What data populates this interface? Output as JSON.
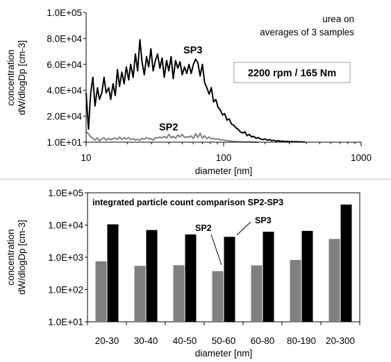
{
  "chart_data": [
    {
      "type": "line",
      "x_scale": "log",
      "xlim": [
        10,
        1000
      ],
      "ylim": [
        10,
        100000
      ],
      "x_ticks": [
        "10",
        "100",
        "1000"
      ],
      "y_ticks": [
        "1.0E+01",
        "2.0E+04",
        "4.0E+04",
        "6.0E+04",
        "8.0E+04",
        "1.0E+05"
      ],
      "xlabel": "diameter [nm]",
      "ylabel_line1": "concentration",
      "ylabel_line2": "dW/dlogDp [cm-3]",
      "annotation_line1": "urea on",
      "annotation_line2": "averages of 3 samples",
      "boxed_label": "2200 rpm / 165 Nm",
      "grid": false,
      "series": [
        {
          "name": "SP3",
          "color": "#000000",
          "x": [
            10,
            10.4,
            10.8,
            11.2,
            11.6,
            12.1,
            12.5,
            13.0,
            13.5,
            14.0,
            14.6,
            15.1,
            15.7,
            16.3,
            16.9,
            17.5,
            18.2,
            18.9,
            19.6,
            20.4,
            21.1,
            22.0,
            22.8,
            23.7,
            24.6,
            25.5,
            26.5,
            27.5,
            28.5,
            29.6,
            30.7,
            31.9,
            33.1,
            34.4,
            35.7,
            37.0,
            38.5,
            39.9,
            41.5,
            43.0,
            44.7,
            46.4,
            48.2,
            50.0,
            51.9,
            53.9,
            56.0,
            58.1,
            60.3,
            62.6,
            65.0,
            67.5,
            70.1,
            72.7,
            75.5,
            78.4,
            81.4,
            84.5,
            87.7,
            91.0,
            94.5,
            98.1,
            101.9,
            105.8,
            109.8,
            114.0,
            118.3,
            122.8,
            127.5,
            132.4,
            137.4,
            142.7,
            148.1,
            153.8,
            159.6,
            165.7,
            172.1,
            178.6,
            185.4,
            192.5,
            199.9,
            207.5,
            215.4,
            223.6,
            232.2,
            241.0,
            250.2,
            259.8,
            269.7,
            280.0,
            290.6,
            301.7,
            313.3,
            325.2,
            337.6,
            350.5,
            363.9,
            377.8,
            392.2
          ],
          "y": [
            38000,
            10000,
            38000,
            50000,
            28000,
            42000,
            33000,
            38000,
            50000,
            38000,
            42000,
            33000,
            45000,
            36000,
            56000,
            43000,
            54000,
            45000,
            58000,
            48000,
            60000,
            50000,
            68000,
            55000,
            79000,
            62000,
            52000,
            66000,
            58000,
            72000,
            55000,
            63000,
            68000,
            57000,
            65000,
            50000,
            63000,
            55000,
            66000,
            49000,
            63000,
            57000,
            62000,
            52000,
            58000,
            53000,
            60000,
            53000,
            60000,
            64000,
            61000,
            51000,
            60000,
            46000,
            42000,
            37000,
            42000,
            31000,
            33000,
            27000,
            25000,
            21000,
            22000,
            17000,
            18000,
            14000,
            13000,
            11000,
            10000,
            8000,
            7000,
            8000,
            5000,
            6000,
            4000,
            4500,
            3000,
            3500,
            2500,
            2000,
            2500,
            1500,
            2000,
            1200,
            1500,
            800,
            1200,
            600,
            900,
            500,
            700,
            400,
            500,
            300,
            400,
            200,
            300,
            100,
            150
          ]
        },
        {
          "name": "SP2",
          "color": "#808080",
          "x": [
            10,
            10.4,
            10.8,
            11.2,
            11.6,
            12.1,
            12.5,
            13.0,
            13.5,
            14.0,
            14.6,
            15.1,
            15.7,
            16.3,
            16.9,
            17.5,
            18.2,
            18.9,
            19.6,
            20.4,
            21.1,
            22.0,
            22.8,
            23.7,
            24.6,
            25.5,
            26.5,
            27.5,
            28.5,
            29.6,
            30.7,
            31.9,
            33.1,
            34.4,
            35.7,
            37.0,
            38.5,
            39.9,
            41.5,
            43.0,
            44.7,
            46.4,
            48.2,
            50.0,
            51.9,
            53.9,
            56.0,
            58.1,
            60.3,
            62.6,
            65.0,
            67.5,
            70.1,
            72.7,
            75.5,
            78.4,
            81.4,
            84.5,
            87.7,
            91.0,
            94.5,
            98.1,
            101.9,
            105.8,
            109.8,
            114.0,
            118.3,
            122.8,
            127.5,
            132.4,
            137.4,
            142.7,
            148.1,
            153.8,
            159.6,
            165.7,
            172.1,
            178.6
          ],
          "y": [
            8000,
            6500,
            4000,
            3000,
            1500,
            3500,
            1000,
            2500,
            3500,
            1500,
            3000,
            1800,
            2800,
            3200,
            2000,
            4000,
            2200,
            3500,
            2400,
            3600,
            2000,
            2800,
            1600,
            2400,
            1300,
            3000,
            2200,
            3600,
            2500,
            2800,
            1500,
            3600,
            3200,
            4000,
            3200,
            4500,
            3000,
            6000,
            3400,
            4500,
            3000,
            5500,
            4000,
            6000,
            3600,
            4200,
            3800,
            4800,
            2800,
            6500,
            3500,
            7000,
            3000,
            5000,
            2600,
            4000,
            2500,
            3000,
            2200,
            2500,
            1800,
            2000,
            1500,
            1200,
            1000,
            800,
            600,
            500,
            400,
            300,
            250,
            200,
            150,
            100,
            100,
            50,
            20,
            10
          ]
        }
      ]
    },
    {
      "type": "bar",
      "y_scale": "log",
      "ylim": [
        10,
        100000
      ],
      "y_ticks": [
        "1.0E+01",
        "1.0E+02",
        "1.0E+03",
        "1.0E+04",
        "1.0E+05"
      ],
      "categories": [
        "20-30",
        "30-40",
        "40-50",
        "50-60",
        "60-80",
        "80-190",
        "20-300"
      ],
      "title": "integrated particle count comparison  SP2-SP3",
      "xlabel": "diameter [nm]",
      "ylabel_line1": "concentration",
      "ylabel_line2": "dW/dlogDp [cm-3]",
      "grid": false,
      "series": [
        {
          "name": "SP2",
          "color": "#808080",
          "values": [
            750,
            540,
            570,
            370,
            560,
            830,
            3700
          ]
        },
        {
          "name": "SP3",
          "color": "#000000",
          "values": [
            10500,
            7000,
            5100,
            4300,
            6200,
            6600,
            43000
          ]
        }
      ]
    }
  ]
}
